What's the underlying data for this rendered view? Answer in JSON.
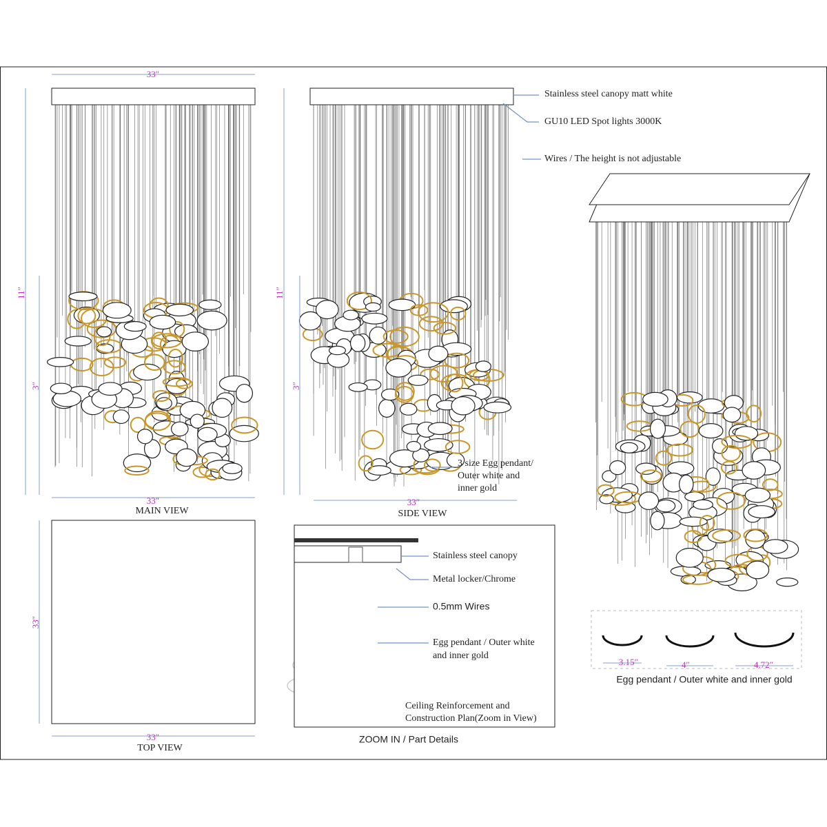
{
  "main_view": {
    "label": "MAIN VIEW",
    "width_top": "33″",
    "height": "11″",
    "height_lower": "3″",
    "width_bottom": "33″"
  },
  "side_view": {
    "label": "SIDE VIEW",
    "height": "11″",
    "height_lower": "3″",
    "width_bottom": "33″"
  },
  "callouts": {
    "canopy": "Stainless steel canopy matt white",
    "spots": "GU10 LED Spot lights 3000K",
    "wires": "Wires / The height is not adjustable",
    "egg": [
      "3 size Egg pendant/",
      "Outer white and",
      "inner gold"
    ]
  },
  "top_view": {
    "label": "TOP VIEW",
    "height": "33″",
    "width": "33″"
  },
  "zoom": {
    "title": "ZOOM IN / Part Details",
    "canopy": "Stainless steel canopy",
    "locker": "Metal locker/Chrome",
    "wires": "0.5mm Wires",
    "egg": [
      "Egg pendant / Outer white",
      "and inner gold"
    ],
    "ceiling": [
      "Ceiling Reinforcement and",
      "Construction Plan(Zoom in View)"
    ]
  },
  "egg_sizes": {
    "caption": "Egg pendant / Outer white and inner gold",
    "sizes": [
      "3.15″",
      "4″",
      "4.72″"
    ]
  }
}
